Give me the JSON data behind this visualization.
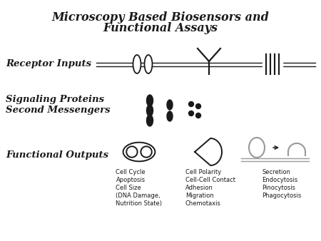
{
  "title_line1": "Microscopy Based Biosensors and",
  "title_line2": "Functional Assays",
  "label_receptor": "Receptor Inputs",
  "label_signaling": "Signaling Proteins\nSecond Messengers",
  "label_functional": "Functional Outputs",
  "caption_cell_cycle": "Cell Cycle\nApoptosis\nCell Size\n(DNA Damage,\nNutrition State)",
  "caption_cell_polarity": "Cell Polarity\nCell-Cell Contact\nAdhesion\nMigration\nChemotaxis",
  "caption_secretion": "Secretion\nEndocytosis\nPinocytosis\nPhagocytosis",
  "bg_color": "#ffffff",
  "text_color": "#1a1a1a",
  "line_color": "#1a1a1a",
  "gray_color": "#999999"
}
